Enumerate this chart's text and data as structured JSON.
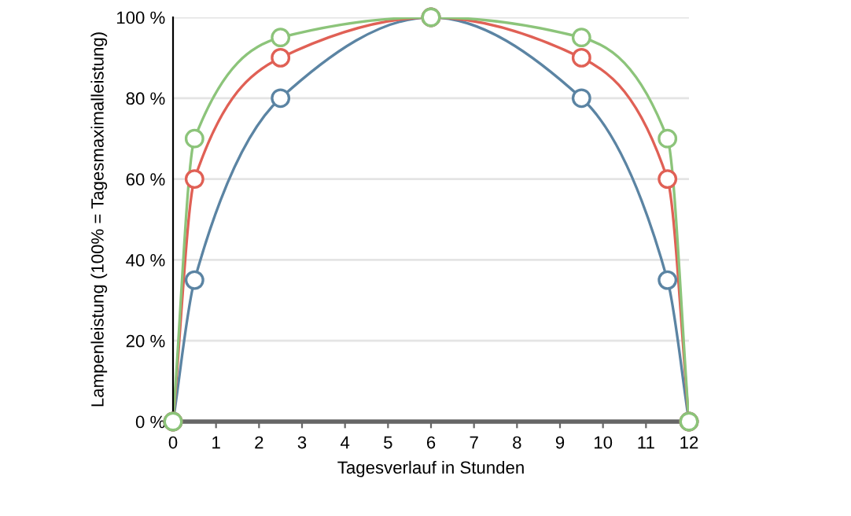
{
  "chart_data": {
    "type": "line",
    "xlabel": "Tagesverlauf in Stunden",
    "ylabel": "Lampenleistung (100% = Tagesmaximalleistung)",
    "x": [
      0,
      0.5,
      2.5,
      6,
      9.5,
      11.5,
      12
    ],
    "series": [
      {
        "color": "#5b84a3",
        "values": [
          0,
          35,
          80,
          100,
          80,
          35,
          0
        ]
      },
      {
        "color": "#e06055",
        "values": [
          0,
          60,
          90,
          100,
          90,
          60,
          0
        ]
      },
      {
        "color": "#8cc47a",
        "values": [
          0,
          70,
          95,
          100,
          95,
          70,
          0
        ]
      }
    ],
    "xlim": [
      0,
      12
    ],
    "xticks": [
      0,
      1,
      2,
      3,
      4,
      5,
      6,
      7,
      8,
      9,
      10,
      11,
      12
    ],
    "ylim": [
      0,
      100
    ],
    "yticks": [
      {
        "value": 0,
        "label": "0 %"
      },
      {
        "value": 20,
        "label": "20 %"
      },
      {
        "value": 40,
        "label": "40 %"
      },
      {
        "value": 60,
        "label": "60 %"
      },
      {
        "value": 80,
        "label": "80 %"
      },
      {
        "value": 100,
        "label": "100 %"
      }
    ],
    "grid": "y",
    "marker": "circle",
    "line_style": "solid"
  }
}
